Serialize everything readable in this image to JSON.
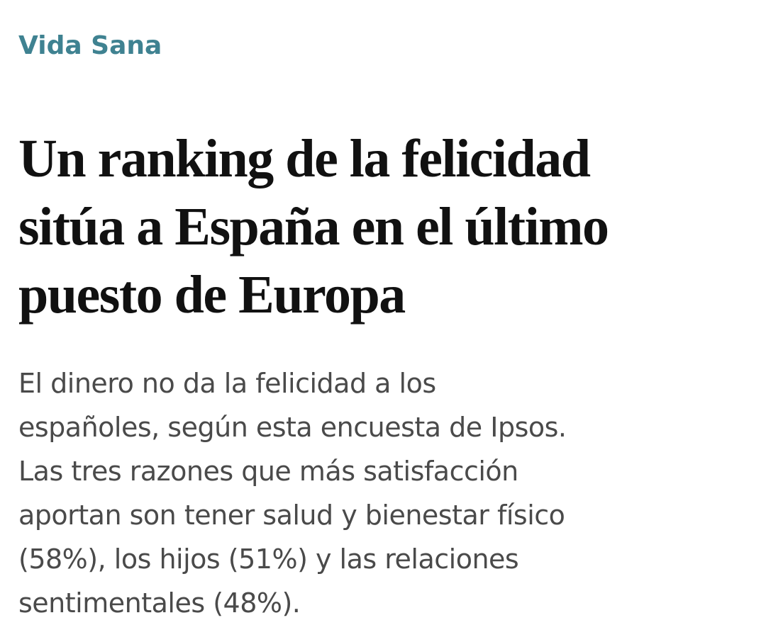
{
  "article": {
    "section": "Vida Sana",
    "headline_lines": [
      "Un ranking de la felicidad",
      "sitúa a España en el último",
      "puesto de Europa"
    ],
    "summary_lines": [
      "El dinero no da la felicidad a los",
      "españoles, según esta encuesta de Ipsos.",
      "Las tres razones que más satisfacción",
      "aportan son tener salud y bienestar físico",
      "(58%), los hijos (51%) y las relaciones",
      "sentimentales (48%)."
    ]
  }
}
